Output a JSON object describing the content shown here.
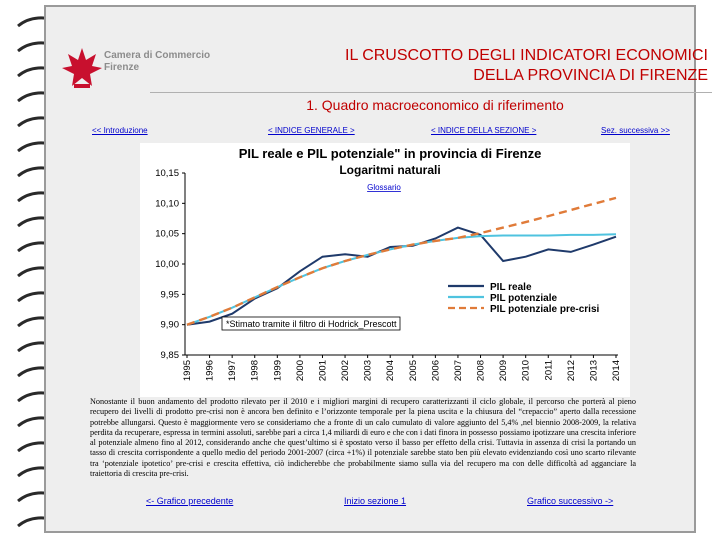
{
  "header": {
    "logo_line1": "Camera di Commercio",
    "logo_line2": "Firenze",
    "title_line1": "IL CRUSCOTTO DEGLI INDICATORI ECONOMICI",
    "title_line2": "DELLA PROVINCIA DI FIRENZE",
    "subtitle": "1. Quadro macroeconomico di riferimento"
  },
  "nav": {
    "intro": "<< Introduzione",
    "index_general": "< INDICE GENERALE >",
    "index_section": "< INDICE DELLA SEZIONE >",
    "next_section": "Sez. successiva >>"
  },
  "glossary_link": "Glossario",
  "chart_data": {
    "type": "line",
    "title": "PIL reale e PIL potenziale\" in provincia di Firenze",
    "subtitle": "Logaritmi naturali",
    "categories": [
      "1995",
      "1996",
      "1997",
      "1998",
      "1999",
      "2000",
      "2001",
      "2002",
      "2003",
      "2004",
      "2005",
      "2006",
      "2007",
      "2008",
      "2009",
      "2010",
      "2011",
      "2012",
      "2013",
      "2014"
    ],
    "ylim": [
      9.85,
      10.15
    ],
    "yticks": [
      "9,85",
      "9,90",
      "9,95",
      "10,00",
      "10,05",
      "10,10",
      "10,15"
    ],
    "ytick_values": [
      9.85,
      9.9,
      9.95,
      10.0,
      10.05,
      10.1,
      10.15
    ],
    "series": [
      {
        "name": "PIL reale",
        "color": "#1f3a6b",
        "style": "solid",
        "values": [
          9.9,
          9.905,
          9.918,
          9.943,
          9.96,
          9.988,
          10.012,
          10.016,
          10.012,
          10.028,
          10.03,
          10.042,
          10.06,
          10.048,
          10.005,
          10.012,
          10.024,
          10.02,
          10.032,
          10.045
        ]
      },
      {
        "name": "PIL potenziale",
        "color": "#4fc3df",
        "style": "solid",
        "values": [
          9.9,
          9.913,
          9.928,
          9.945,
          9.962,
          9.978,
          9.993,
          10.005,
          10.015,
          10.024,
          10.032,
          10.038,
          10.043,
          10.046,
          10.047,
          10.047,
          10.047,
          10.048,
          10.048,
          10.049
        ]
      },
      {
        "name": "PIL potenziale pre-crisi",
        "color": "#e07b39",
        "style": "dashed",
        "values": [
          9.9,
          9.913,
          9.928,
          9.945,
          9.962,
          9.978,
          9.993,
          10.005,
          10.015,
          10.024,
          10.032,
          10.038,
          10.043,
          10.051,
          10.06,
          10.069,
          10.079,
          10.089,
          10.099,
          10.109
        ]
      }
    ],
    "annotation": "*Stimato tramite il filtro di Hodrick_Prescott",
    "grid": false,
    "legend": "bottom-right"
  },
  "body_text": "Nonostante il buon andamento del prodotto rilevato per il 2010 e i migliori margini di recupero caratterizzanti il ciclo globale, il percorso che porterà al pieno recupero dei livelli di prodotto pre-crisi non è ancora ben definito e l’orizzonte temporale per la piena uscita e la chiusura del “crepaccio” aperto dalla recessione potrebbe allungarsi. Questo è maggiormente vero se consideriamo che a fronte di un calo cumulato di valore aggiunto del 5,4% ,nel biennio 2008-2009, la relativa perdita da recuperare, espressa in termini assoluti, sarebbe pari a circa 1,4 miliardi di euro e che con i dati finora in possesso possiamo ipotizzare una crescita inferiore al potenziale almeno fino al 2012, considerando anche che quest’ultimo si è spostato verso il basso per effetto della crisi. Tuttavia in assenza di crisi la portando un tasso di crescita corrispondente a quello medio del periodo 2001-2007 (circa +1%) il potenziale sarebbe stato ben più elevato evidenziando così uno scarto rilevante tra ‘potenziale ipotetico’ pre-crisi e crescita effettiva, ciò indicherebbe che probabilmente siamo sulla via del recupero ma con delle difficoltà ad agganciare la traiettoria di crescita pre-crisi.",
  "footer": {
    "prev_chart": "<- Grafico precedente",
    "section_start": "Inizio sezione 1",
    "next_chart": "Grafico successivo ->"
  }
}
